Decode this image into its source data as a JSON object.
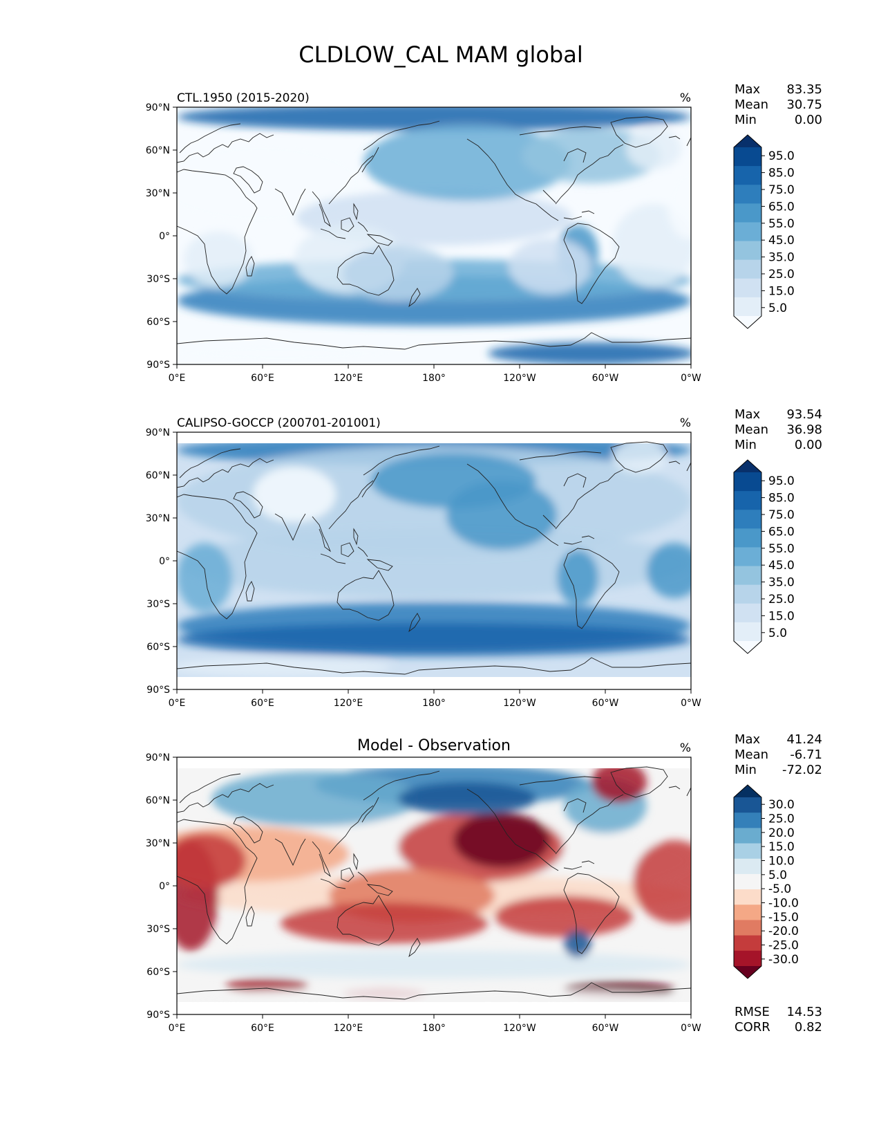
{
  "figure": {
    "title": "CLDLOW_CAL MAM global"
  },
  "axes": {
    "lat_ticks": [
      "90°N",
      "60°N",
      "30°N",
      "0°",
      "30°S",
      "60°S",
      "90°S"
    ],
    "lon_ticks": [
      "0°E",
      "60°E",
      "120°E",
      "180°",
      "120°W",
      "60°W",
      "0°W"
    ]
  },
  "colormaps": {
    "sequential_blues": [
      "#f7fbff",
      "#e3eef8",
      "#d0e1f2",
      "#b7d4ea",
      "#94c4df",
      "#6baed6",
      "#4a98c9",
      "#2e7ebc",
      "#1764ab",
      "#084a91",
      "#08306b"
    ],
    "diverging_rdbu": [
      "#67001f",
      "#a51429",
      "#c43c3c",
      "#e07b62",
      "#f4a886",
      "#fcdcc9",
      "#f5f5f5",
      "#dbeaf2",
      "#a9d0e5",
      "#6aaccf",
      "#3480b9",
      "#195695",
      "#053061"
    ],
    "land_outline": "#222222"
  },
  "panels": [
    {
      "left_title": "CTL.1950 (2015-2020)",
      "center_title": "",
      "units": "%",
      "stats": {
        "max_label": "Max",
        "max": "83.35",
        "mean_label": "Mean",
        "mean": "30.75",
        "min_label": "Min",
        "min": "0.00"
      },
      "colorbar": {
        "cmap": "sequential_blues",
        "tick_labels": [
          "95.0",
          "85.0",
          "75.0",
          "65.0",
          "55.0",
          "45.0",
          "35.0",
          "25.0",
          "15.0",
          "5.0"
        ]
      }
    },
    {
      "left_title": "CALIPSO-GOCCP (200701-201001)",
      "center_title": "",
      "units": "%",
      "stats": {
        "max_label": "Max",
        "max": "93.54",
        "mean_label": "Mean",
        "mean": "36.98",
        "min_label": "Min",
        "min": "0.00"
      },
      "colorbar": {
        "cmap": "sequential_blues",
        "tick_labels": [
          "95.0",
          "85.0",
          "75.0",
          "65.0",
          "55.0",
          "45.0",
          "35.0",
          "25.0",
          "15.0",
          "5.0"
        ]
      }
    },
    {
      "left_title": "",
      "center_title": "Model - Observation",
      "units": "%",
      "stats": {
        "max_label": "Max",
        "max": "41.24",
        "mean_label": "Mean",
        "mean": "-6.71",
        "min_label": "Min",
        "min": "-72.02"
      },
      "colorbar": {
        "cmap": "diverging_rdbu",
        "tick_labels": [
          "30.0",
          "25.0",
          "20.0",
          "15.0",
          "10.0",
          "5.0",
          "-5.0",
          "-10.0",
          "-15.0",
          "-20.0",
          "-25.0",
          "-30.0"
        ]
      },
      "metrics": {
        "rmse_label": "RMSE",
        "rmse": "14.53",
        "corr_label": "CORR",
        "corr": "0.82"
      }
    }
  ]
}
